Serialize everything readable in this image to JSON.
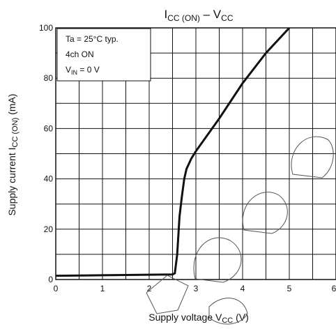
{
  "chart_data": {
    "type": "line",
    "title": "ICC (ON) – VCC",
    "xlabel": "Supply voltage VCC (V)",
    "ylabel": "Supply current ICC (ON) (mA)",
    "xlim": [
      0,
      6
    ],
    "ylim": [
      0,
      100
    ],
    "x_ticks": [
      "0",
      "1",
      "2",
      "3",
      "4",
      "5",
      "6"
    ],
    "y_ticks": [
      "0",
      "20",
      "40",
      "60",
      "80",
      "100"
    ],
    "grid": true,
    "annotations": [
      "Ta = 25°C typ.",
      "4ch ON",
      "VIN = 0 V"
    ],
    "series": [
      {
        "x": [
          0,
          1.0,
          2.0,
          2.5,
          2.55,
          2.6,
          2.65,
          2.7,
          2.75,
          2.8,
          2.9,
          3.0,
          3.5,
          4.0,
          4.5,
          5.0
        ],
        "y": [
          1.5,
          1.7,
          1.9,
          2.0,
          2.5,
          10,
          25,
          33,
          40,
          44,
          48,
          51,
          64,
          78,
          90,
          100
        ]
      }
    ],
    "color": "#111111"
  }
}
